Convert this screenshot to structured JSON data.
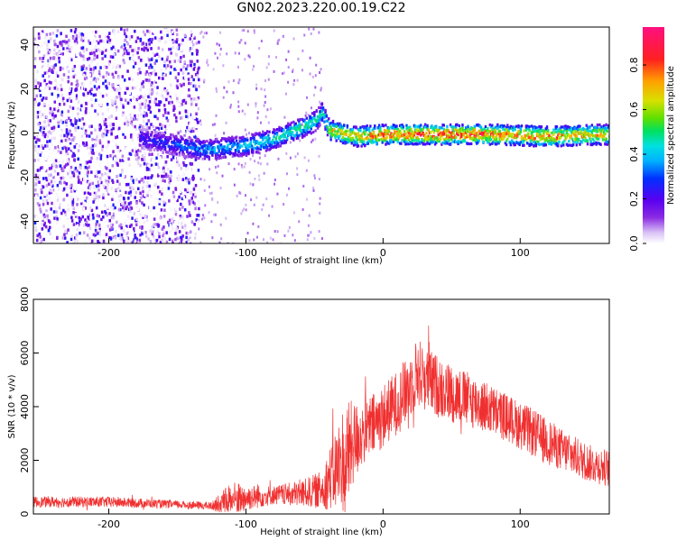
{
  "title": "GN02.2023.220.00.19.C22",
  "colors": {
    "snr_line": "#f03030",
    "colormap": [
      "#ffffff",
      "#d9c2f5",
      "#8a2be2",
      "#5a00f0",
      "#0030ff",
      "#00b0ff",
      "#00e0e0",
      "#00e060",
      "#60e000",
      "#d8e000",
      "#ffa000",
      "#ff2020",
      "#ff1080"
    ]
  },
  "chart_data": [
    {
      "type": "heatmap",
      "title": "GN02.2023.220.00.19.C22",
      "xlabel": "Height of straight line (km)",
      "ylabel": "Frequency (Hz)",
      "xlim": [
        -255,
        165
      ],
      "ylim": [
        -50,
        48
      ],
      "x_ticks": [
        -200,
        -100,
        0,
        100
      ],
      "y_ticks": [
        -40,
        -20,
        0,
        20,
        40
      ],
      "colorbar": {
        "label": "Normalized spectral amplitude",
        "range": [
          0,
          0.97
        ],
        "ticks": [
          "0.0",
          "0.2",
          "0.4",
          "0.6",
          "0.8"
        ]
      },
      "ridge": {
        "description_points_x": [
          -175,
          -160,
          -130,
          -100,
          -80,
          -60,
          -50,
          -45,
          -40,
          -20,
          0,
          40,
          80,
          120,
          160
        ],
        "frequency": [
          -2,
          -4,
          -7,
          -5,
          -2,
          3,
          6,
          10,
          2,
          -1,
          0,
          0,
          0,
          -1,
          0
        ],
        "amplitude": [
          0.25,
          0.3,
          0.4,
          0.45,
          0.5,
          0.55,
          0.5,
          0.45,
          0.7,
          0.75,
          0.85,
          0.9,
          0.85,
          0.8,
          0.75
        ]
      },
      "noise_region_x": [
        -255,
        -135
      ]
    },
    {
      "type": "line",
      "xlabel": "Height of straight line (km)",
      "ylabel": "SNR (10 * v/v)",
      "xlim": [
        -255,
        165
      ],
      "ylim": [
        0,
        8000
      ],
      "x_ticks": [
        -200,
        -100,
        0,
        100
      ],
      "y_ticks": [
        0,
        2000,
        4000,
        6000,
        8000
      ],
      "envelope_x": [
        -255,
        -200,
        -150,
        -125,
        -110,
        -100,
        -80,
        -60,
        -45,
        -35,
        -28,
        -22,
        -15,
        -5,
        5,
        15,
        25,
        35,
        50,
        70,
        90,
        110,
        130,
        150,
        165
      ],
      "envelope_mean": [
        450,
        450,
        350,
        300,
        550,
        600,
        700,
        750,
        900,
        1600,
        2000,
        2600,
        3000,
        3400,
        3900,
        4400,
        5300,
        4900,
        4500,
        4100,
        3600,
        3000,
        2400,
        1900,
        1700
      ],
      "envelope_spread": [
        200,
        200,
        150,
        150,
        700,
        500,
        350,
        500,
        700,
        1500,
        2300,
        1600,
        1200,
        1200,
        1200,
        1200,
        1300,
        1200,
        1100,
        1000,
        900,
        900,
        800,
        700,
        700
      ]
    }
  ]
}
